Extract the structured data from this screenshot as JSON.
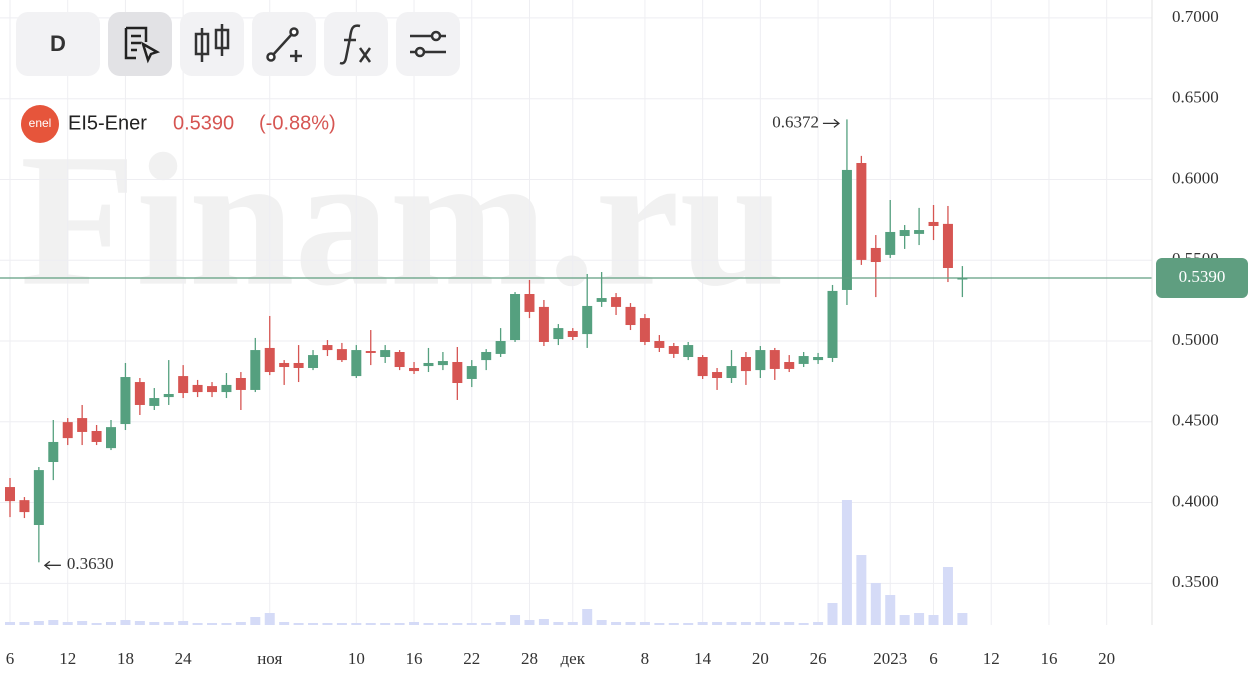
{
  "toolbar": {
    "interval": "D"
  },
  "header": {
    "symbol": "EI5-Ener",
    "logo": "enel",
    "change": "(-0.88%)"
  },
  "watermark": "Finam.ru",
  "chart_data": {
    "type": "candlestick",
    "categories": [
      "6",
      null,
      null,
      null,
      "12",
      null,
      null,
      null,
      "18",
      null,
      null,
      null,
      "24",
      null,
      null,
      null,
      null,
      null,
      "ноя",
      null,
      null,
      null,
      null,
      null,
      "10",
      null,
      null,
      null,
      "16",
      null,
      null,
      null,
      "22",
      null,
      null,
      null,
      "28",
      null,
      null,
      "дек",
      null,
      null,
      null,
      null,
      "8",
      null,
      null,
      null,
      "14",
      null,
      null,
      null,
      "20",
      null,
      null,
      null,
      "26",
      null,
      null,
      null,
      null,
      "2023",
      null,
      null,
      "6",
      null,
      null,
      null,
      "12",
      null,
      null,
      null,
      "16",
      null,
      null,
      null,
      "20"
    ],
    "open": [
      0.4096,
      0.4015,
      0.3861,
      0.4251,
      0.4498,
      0.4523,
      0.4443,
      0.4337,
      0.4486,
      0.4746,
      0.4598,
      0.4653,
      0.4783,
      0.4728,
      0.4721,
      0.4684,
      0.4771,
      0.4697,
      0.4957,
      0.4864,
      0.4864,
      0.4833,
      0.4975,
      0.495,
      0.4783,
      0.4938,
      0.4901,
      0.4932,
      0.4833,
      0.4845,
      0.4851,
      0.487,
      0.4765,
      0.4882,
      0.492,
      0.5006,
      0.5291,
      0.5211,
      0.5012,
      0.5062,
      0.5043,
      0.5242,
      0.5272,
      0.5211,
      0.5142,
      0.5,
      0.4969,
      0.4901,
      0.4901,
      0.4808,
      0.4771,
      0.4901,
      0.482,
      0.4944,
      0.487,
      0.4858,
      0.4882,
      0.4895,
      0.5316,
      0.6102,
      0.5576,
      0.5533,
      0.565,
      0.5663,
      0.5737,
      0.5725,
      0.5384,
      null,
      null,
      null,
      null,
      null,
      null,
      null,
      null,
      null,
      null
    ],
    "high": [
      0.4152,
      0.4034,
      0.422,
      0.4511,
      0.4523,
      0.4604,
      0.448,
      0.4511,
      0.4864,
      0.4771,
      0.4709,
      0.4882,
      0.4851,
      0.4759,
      0.4746,
      0.4802,
      0.4808,
      0.5019,
      0.5155,
      0.4882,
      0.4975,
      0.4944,
      0.5006,
      0.4988,
      0.4975,
      0.5068,
      0.4975,
      0.4944,
      0.487,
      0.4957,
      0.4932,
      0.4963,
      0.4882,
      0.495,
      0.508,
      0.5303,
      0.5378,
      0.5254,
      0.5105,
      0.508,
      0.5415,
      0.5427,
      0.5297,
      0.5235,
      0.5167,
      0.5037,
      0.4988,
      0.4994,
      0.4913,
      0.4833,
      0.4944,
      0.4932,
      0.4969,
      0.4957,
      0.4913,
      0.4932,
      0.4926,
      0.5347,
      0.6372,
      0.6146,
      0.5656,
      0.5873,
      0.5718,
      0.5824,
      0.5842,
      0.5836,
      0.5464,
      null,
      null,
      null,
      null,
      null,
      null,
      null,
      null,
      null,
      null
    ],
    "low": [
      0.391,
      0.3904,
      0.363,
      0.4139,
      0.4356,
      0.4356,
      0.4356,
      0.4325,
      0.4449,
      0.4542,
      0.4573,
      0.4604,
      0.4647,
      0.4653,
      0.4653,
      0.4647,
      0.4573,
      0.4684,
      0.4789,
      0.4728,
      0.4746,
      0.482,
      0.4907,
      0.487,
      0.4771,
      0.4851,
      0.4864,
      0.482,
      0.4796,
      0.4808,
      0.482,
      0.4635,
      0.4715,
      0.482,
      0.4901,
      0.4994,
      0.5142,
      0.4969,
      0.4975,
      0.5006,
      0.4957,
      0.5211,
      0.5161,
      0.5068,
      0.4975,
      0.4932,
      0.4895,
      0.4882,
      0.4765,
      0.4697,
      0.474,
      0.4728,
      0.4771,
      0.4759,
      0.4808,
      0.4839,
      0.4858,
      0.487,
      0.5223,
      0.5471,
      0.5272,
      0.5514,
      0.557,
      0.5594,
      0.5625,
      0.5365,
      0.5272,
      null,
      null,
      null,
      null,
      null,
      null,
      null,
      null,
      null,
      null
    ],
    "close": [
      0.4009,
      0.3941,
      0.4201,
      0.4375,
      0.4399,
      0.4437,
      0.4375,
      0.4467,
      0.4777,
      0.4604,
      0.4647,
      0.4672,
      0.4678,
      0.4684,
      0.4684,
      0.4728,
      0.4697,
      0.4944,
      0.4808,
      0.4839,
      0.4833,
      0.4913,
      0.4944,
      0.4882,
      0.4944,
      0.4926,
      0.4944,
      0.4839,
      0.4814,
      0.4864,
      0.4876,
      0.474,
      0.4845,
      0.4932,
      0.5,
      0.5291,
      0.518,
      0.4994,
      0.508,
      0.5025,
      0.5217,
      0.5266,
      0.5211,
      0.5099,
      0.4994,
      0.4957,
      0.492,
      0.4975,
      0.4783,
      0.4771,
      0.4845,
      0.4814,
      0.4944,
      0.4827,
      0.4827,
      0.4907,
      0.4901,
      0.531,
      0.6059,
      0.5502,
      0.5489,
      0.5675,
      0.5687,
      0.5687,
      0.5712,
      0.5452,
      0.539,
      null,
      null,
      null,
      null,
      null,
      null,
      null,
      null,
      null,
      null
    ],
    "volume": [
      3,
      3,
      4,
      5,
      3,
      4,
      2,
      3,
      5,
      4,
      3,
      3,
      4,
      2,
      2,
      2,
      3,
      8,
      12,
      3,
      2,
      2,
      2,
      2,
      2,
      2,
      2,
      2,
      3,
      2,
      2,
      2,
      2,
      2,
      3,
      10,
      5,
      6,
      3,
      3,
      16,
      5,
      3,
      3,
      3,
      2,
      2,
      2,
      3,
      3,
      3,
      3,
      3,
      3,
      3,
      2,
      3,
      22,
      125,
      70,
      42,
      30,
      10,
      12,
      10,
      58,
      12,
      null,
      null,
      null,
      null,
      null,
      null,
      null,
      null,
      null,
      null
    ],
    "up_color": "#55a07f",
    "down_color": "#d65552",
    "volume_color": "#d5dbf7",
    "ylim": [
      0.3242,
      0.7111
    ],
    "yticks": [
      {
        "value": 0.35,
        "label": "0.3500"
      },
      {
        "value": 0.4,
        "label": "0.4000"
      },
      {
        "value": 0.45,
        "label": "0.4500"
      },
      {
        "value": 0.5,
        "label": "0.5000"
      },
      {
        "value": 0.55,
        "label": "0.5500"
      },
      {
        "value": 0.6,
        "label": "0.6000"
      },
      {
        "value": 0.65,
        "label": "0.6500"
      },
      {
        "value": 0.7,
        "label": "0.7000"
      }
    ],
    "grid": true,
    "last": {
      "value": 0.539,
      "label": "0.5390"
    },
    "annotations": [
      {
        "value": 0.6372,
        "label": "0.6372",
        "index": 58,
        "side": "left"
      },
      {
        "value": 0.363,
        "label": "0.3630",
        "index": 2,
        "side": "right"
      }
    ]
  }
}
